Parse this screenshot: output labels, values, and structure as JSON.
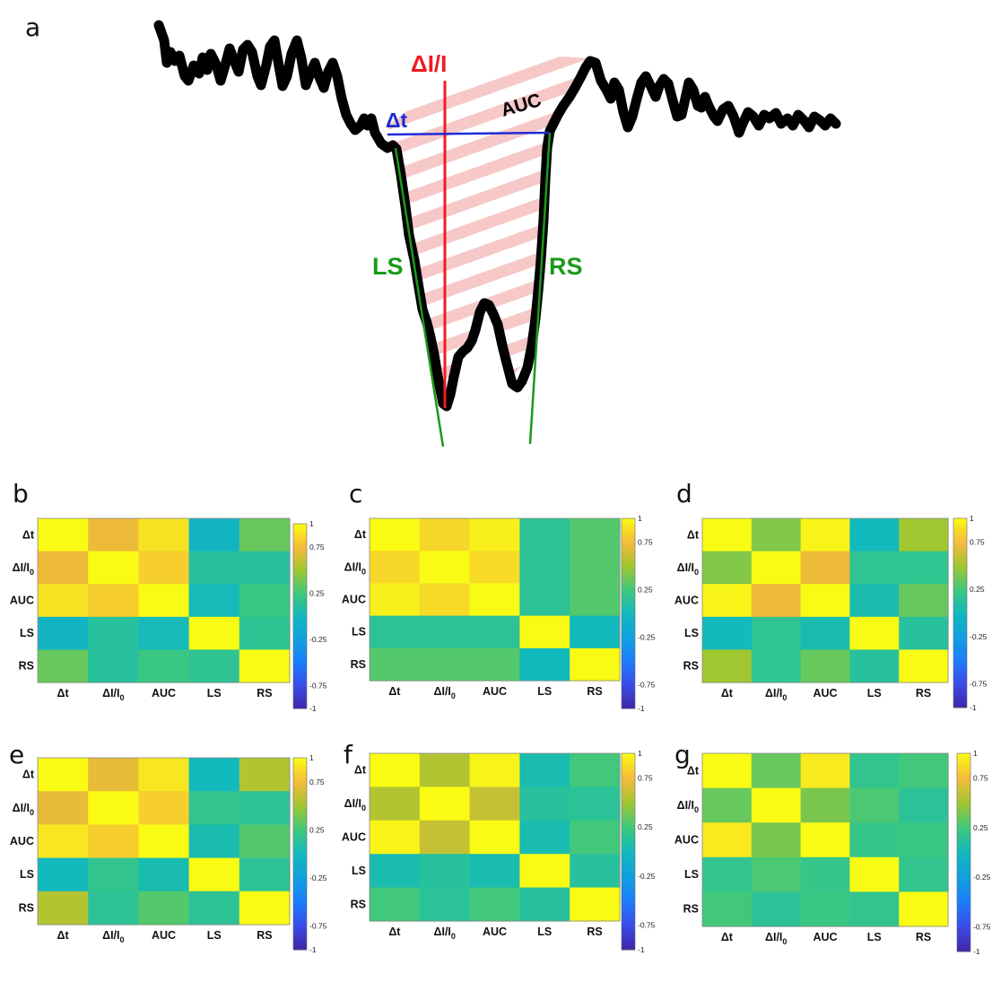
{
  "panel_a": {
    "letter": "a",
    "labels": {
      "amplitude": "ΔI/I",
      "dwell": "Δt",
      "area": "AUC",
      "left_slope": "LS",
      "right_slope": "RS"
    },
    "colors": {
      "trace": "#000000",
      "amplitude": "#ee1c24",
      "dwell": "#1f2bd6",
      "slopes": "#1a9a1a",
      "area_hatch": "#f6c8c8"
    }
  },
  "chart_data": [
    {
      "type": "heatmap",
      "panel": "b",
      "x_tick_labels": [
        "Δt",
        "ΔI/I0",
        "AUC",
        "LS",
        "RS"
      ],
      "y_tick_labels": [
        "Δt",
        "ΔI/I0",
        "AUC",
        "LS",
        "RS"
      ],
      "colorbar": {
        "colormap": "parula",
        "range": [
          -1,
          1
        ],
        "tick_labels": [
          "1",
          "0.75",
          "0.25",
          "-0.25",
          "-0.75",
          "-1"
        ]
      },
      "values": [
        [
          1.0,
          0.72,
          0.9,
          -0.05,
          0.35
        ],
        [
          0.72,
          1.0,
          0.82,
          0.12,
          0.12
        ],
        [
          0.9,
          0.82,
          1.0,
          0.02,
          0.22
        ],
        [
          -0.05,
          0.12,
          0.02,
          1.0,
          0.16
        ],
        [
          0.35,
          0.12,
          0.22,
          0.16,
          1.0
        ]
      ]
    },
    {
      "type": "heatmap",
      "panel": "c",
      "x_tick_labels": [
        "Δt",
        "ΔI/I0",
        "AUC",
        "LS",
        "RS"
      ],
      "y_tick_labels": [
        "Δt",
        "ΔI/I0",
        "AUC",
        "LS",
        "RS"
      ],
      "colorbar": {
        "colormap": "parula",
        "range": [
          -1,
          1
        ],
        "tick_labels": [
          "1",
          "0.75",
          "0.25",
          "-0.25",
          "-0.75",
          "-1"
        ]
      },
      "values": [
        [
          1.0,
          0.85,
          0.95,
          0.15,
          0.3
        ],
        [
          0.85,
          1.0,
          0.87,
          0.15,
          0.3
        ],
        [
          0.95,
          0.87,
          1.0,
          0.15,
          0.3
        ],
        [
          0.15,
          0.15,
          0.15,
          1.0,
          0.0
        ],
        [
          0.3,
          0.3,
          0.3,
          0.0,
          1.0
        ]
      ]
    },
    {
      "type": "heatmap",
      "panel": "d",
      "x_tick_labels": [
        "Δt",
        "ΔI/I0",
        "AUC",
        "LS",
        "RS"
      ],
      "y_tick_labels": [
        "Δt",
        "ΔI/I0",
        "AUC",
        "LS",
        "RS"
      ],
      "colorbar": {
        "colormap": "parula",
        "range": [
          -1,
          1
        ],
        "tick_labels": [
          "1",
          "0.75",
          "0.25",
          "-0.25",
          "-0.75",
          "-1"
        ]
      },
      "values": [
        [
          1.0,
          0.42,
          0.97,
          0.0,
          0.5
        ],
        [
          0.42,
          1.0,
          0.72,
          0.17,
          0.17
        ],
        [
          0.97,
          0.72,
          1.0,
          0.05,
          0.35
        ],
        [
          0.0,
          0.17,
          0.05,
          1.0,
          0.12
        ],
        [
          0.5,
          0.17,
          0.35,
          0.12,
          1.0
        ]
      ]
    },
    {
      "type": "heatmap",
      "panel": "e",
      "x_tick_labels": [
        "Δt",
        "ΔI/I0",
        "AUC",
        "LS",
        "RS"
      ],
      "y_tick_labels": [
        "Δt",
        "ΔI/I0",
        "AUC",
        "LS",
        "RS"
      ],
      "colorbar": {
        "colormap": "parula",
        "range": [
          -1,
          1
        ],
        "tick_labels": [
          "1",
          "0.75",
          "0.25",
          "-0.25",
          "-0.75",
          "-1"
        ]
      },
      "values": [
        [
          1.0,
          0.7,
          0.92,
          0.0,
          0.55
        ],
        [
          0.7,
          1.0,
          0.82,
          0.18,
          0.15
        ],
        [
          0.92,
          0.82,
          1.0,
          0.05,
          0.3
        ],
        [
          0.0,
          0.18,
          0.05,
          1.0,
          0.15
        ],
        [
          0.55,
          0.15,
          0.3,
          0.15,
          1.0
        ]
      ]
    },
    {
      "type": "heatmap",
      "panel": "f",
      "x_tick_labels": [
        "Δt",
        "ΔI/I0",
        "AUC",
        "LS",
        "RS"
      ],
      "y_tick_labels": [
        "Δt",
        "ΔI/I0",
        "AUC",
        "LS",
        "RS"
      ],
      "colorbar": {
        "colormap": "parula",
        "range": [
          -1,
          1
        ],
        "tick_labels": [
          "1",
          "0.75",
          "0.25",
          "-0.25",
          "-0.75",
          "-1"
        ]
      },
      "values": [
        [
          1.0,
          0.55,
          0.97,
          0.05,
          0.25
        ],
        [
          0.55,
          1.0,
          0.6,
          0.12,
          0.14
        ],
        [
          0.97,
          0.6,
          1.0,
          0.05,
          0.25
        ],
        [
          0.05,
          0.12,
          0.05,
          1.0,
          0.12
        ],
        [
          0.25,
          0.14,
          0.25,
          0.12,
          1.0
        ]
      ]
    },
    {
      "type": "heatmap",
      "panel": "g",
      "x_tick_labels": [
        "Δt",
        "ΔI/I0",
        "AUC",
        "LS",
        "RS"
      ],
      "y_tick_labels": [
        "Δt",
        "ΔI/I0",
        "AUC",
        "LS",
        "RS"
      ],
      "colorbar": {
        "colormap": "parula",
        "range": [
          -1,
          1
        ],
        "tick_labels": [
          "1",
          "0.75",
          "0.25",
          "-0.25",
          "-0.75",
          "-1"
        ]
      },
      "values": [
        [
          1.0,
          0.35,
          0.93,
          0.18,
          0.25
        ],
        [
          0.35,
          1.0,
          0.4,
          0.28,
          0.14
        ],
        [
          0.93,
          0.4,
          1.0,
          0.2,
          0.22
        ],
        [
          0.18,
          0.28,
          0.2,
          1.0,
          0.18
        ],
        [
          0.25,
          0.14,
          0.22,
          0.18,
          1.0
        ]
      ]
    }
  ]
}
